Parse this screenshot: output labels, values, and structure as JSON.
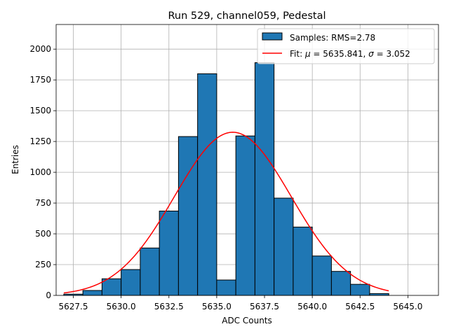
{
  "chart_data": {
    "type": "bar",
    "title": "Run 529, channel059, Pedestal",
    "xlabel": "ADC Counts",
    "ylabel": "Entries",
    "xlim": [
      5626.6,
      5646.6
    ],
    "ylim": [
      0,
      2200
    ],
    "grid": true,
    "legend_position": "top-right",
    "x_ticks": [
      5627.5,
      5630.0,
      5632.5,
      5635.0,
      5637.5,
      5640.0,
      5642.5,
      5645.0
    ],
    "x_tick_labels": [
      "5627.5",
      "5630.0",
      "5632.5",
      "5635.0",
      "5637.5",
      "5640.0",
      "5642.5",
      "5645.0"
    ],
    "y_ticks": [
      0,
      250,
      500,
      750,
      1000,
      1250,
      1500,
      1750,
      2000
    ],
    "y_tick_labels": [
      "0",
      "250",
      "500",
      "750",
      "1000",
      "1250",
      "1500",
      "1750",
      "2000"
    ],
    "bin_edges": [
      5627.0,
      5628.0,
      5629.0,
      5630.0,
      5631.0,
      5632.0,
      5633.0,
      5634.0,
      5635.0,
      5636.0,
      5637.0,
      5638.0,
      5639.0,
      5640.0,
      5641.0,
      5642.0,
      5643.0,
      5644.0
    ],
    "values": [
      10,
      40,
      135,
      210,
      385,
      685,
      1290,
      1800,
      125,
      1295,
      1890,
      790,
      555,
      320,
      195,
      90,
      15
    ],
    "series": [
      {
        "name": "Samples: RMS=2.78",
        "kind": "histogram",
        "color": "#1f77b4"
      },
      {
        "name": "Fit",
        "kind": "gaussian",
        "mu": 5635.841,
        "sigma": 3.052,
        "amplitude": 1325,
        "x_range": [
          5627.0,
          5644.0
        ],
        "color": "#ff0000"
      }
    ],
    "legend": {
      "samples_label": "Samples: RMS=2.78",
      "fit_prefix": "Fit: ",
      "mu_symbol": "μ",
      "mu_text": " = 5635.841, ",
      "sigma_symbol": "σ",
      "sigma_text": " = 3.052"
    }
  }
}
